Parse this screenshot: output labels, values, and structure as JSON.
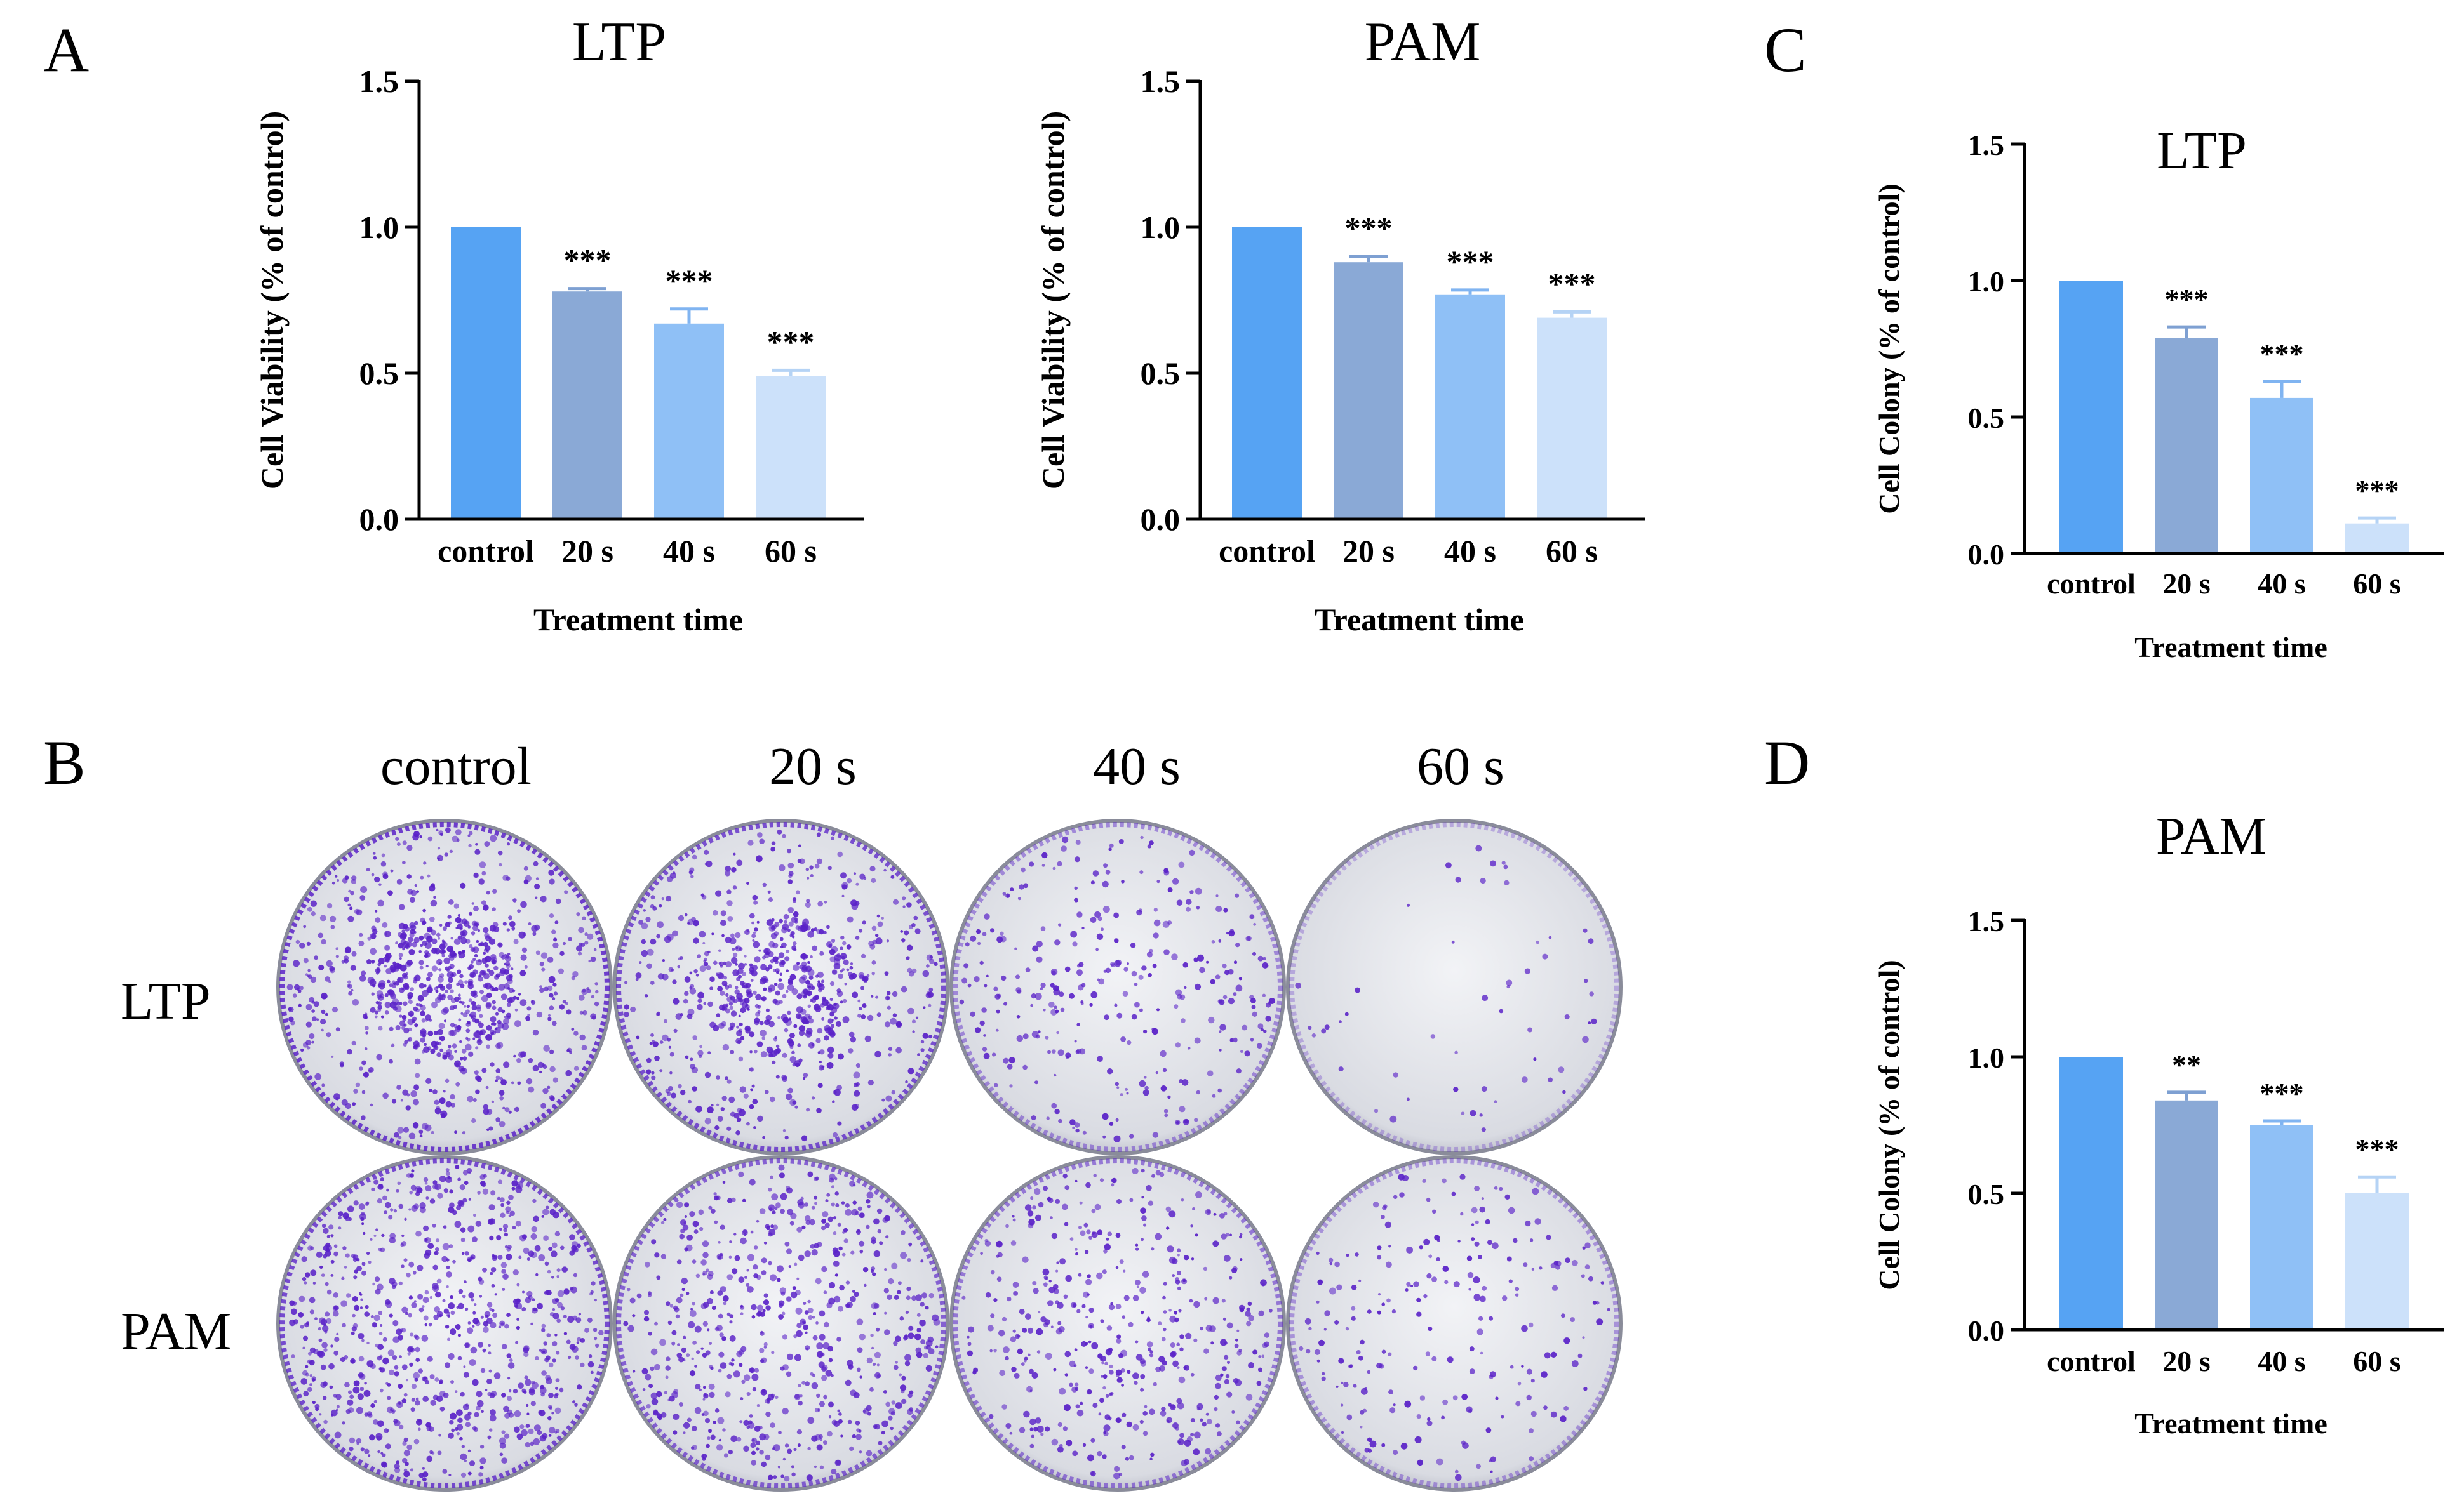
{
  "panel_letters": {
    "a": "A",
    "b": "B",
    "c": "C",
    "d": "D"
  },
  "significance_levels": {
    "two": "**",
    "three": "***"
  },
  "colors": {
    "control": "#56a3f3",
    "20s": "#8aa9d6",
    "40s": "#8fc0f6",
    "60s": "#cce1fa",
    "axis": "#000000",
    "stain": "#5a22c8",
    "plate": "#e9eaee"
  },
  "plates": {
    "column_labels": [
      "control",
      "20 s",
      "40 s",
      "60 s"
    ],
    "row_labels": [
      "LTP",
      "PAM"
    ],
    "stain_density": [
      [
        1.0,
        0.85,
        0.35,
        0.06
      ],
      [
        0.9,
        0.7,
        0.5,
        0.25
      ]
    ]
  },
  "chart_data": [
    {
      "id": "A-LTP",
      "type": "bar",
      "title": "LTP",
      "categories": [
        "control",
        "20 s",
        "40 s",
        "60 s"
      ],
      "values": [
        1.0,
        0.78,
        0.67,
        0.49
      ],
      "errors": [
        0.0,
        0.01,
        0.05,
        0.02
      ],
      "significance": [
        "",
        "***",
        "***",
        "***"
      ],
      "xlabel": "Treatment time",
      "ylabel": "Cell Viability (% of control)",
      "ylim": [
        0,
        1.5
      ],
      "yticks": [
        0.0,
        0.5,
        1.0,
        1.5
      ],
      "ytick_labels": [
        "0.0",
        "0.5",
        "1.0",
        "1.5"
      ]
    },
    {
      "id": "A-PAM",
      "type": "bar",
      "title": "PAM",
      "categories": [
        "control",
        "20 s",
        "40 s",
        "60 s"
      ],
      "values": [
        1.0,
        0.88,
        0.77,
        0.69
      ],
      "errors": [
        0.0,
        0.02,
        0.015,
        0.02
      ],
      "significance": [
        "",
        "***",
        "***",
        "***"
      ],
      "xlabel": "Treatment time",
      "ylabel": "Cell Viability (% of control)",
      "ylim": [
        0,
        1.5
      ],
      "yticks": [
        0.0,
        0.5,
        1.0,
        1.5
      ],
      "ytick_labels": [
        "0.0",
        "0.5",
        "1.0",
        "1.5"
      ]
    },
    {
      "id": "C-LTP",
      "type": "bar",
      "title": "LTP",
      "categories": [
        "control",
        "20 s",
        "40 s",
        "60 s"
      ],
      "values": [
        1.0,
        0.79,
        0.57,
        0.11
      ],
      "errors": [
        0.0,
        0.04,
        0.06,
        0.02
      ],
      "significance": [
        "",
        "***",
        "***",
        "***"
      ],
      "xlabel": "Treatment time",
      "ylabel": "Cell Colony (% of control)",
      "ylim": [
        0,
        1.5
      ],
      "yticks": [
        0.0,
        0.5,
        1.0,
        1.5
      ],
      "ytick_labels": [
        "0.0",
        "0.5",
        "1.0",
        "1.5"
      ]
    },
    {
      "id": "D-PAM",
      "type": "bar",
      "title": "PAM",
      "categories": [
        "control",
        "20 s",
        "40 s",
        "60 s"
      ],
      "values": [
        1.0,
        0.84,
        0.75,
        0.5
      ],
      "errors": [
        0.0,
        0.03,
        0.015,
        0.06
      ],
      "significance": [
        "",
        "**",
        "***",
        "***"
      ],
      "xlabel": "Treatment time",
      "ylabel": "Cell Colony (% of control)",
      "ylim": [
        0,
        1.5
      ],
      "yticks": [
        0.0,
        0.5,
        1.0,
        1.5
      ],
      "ytick_labels": [
        "0.0",
        "0.5",
        "1.0",
        "1.5"
      ]
    }
  ]
}
